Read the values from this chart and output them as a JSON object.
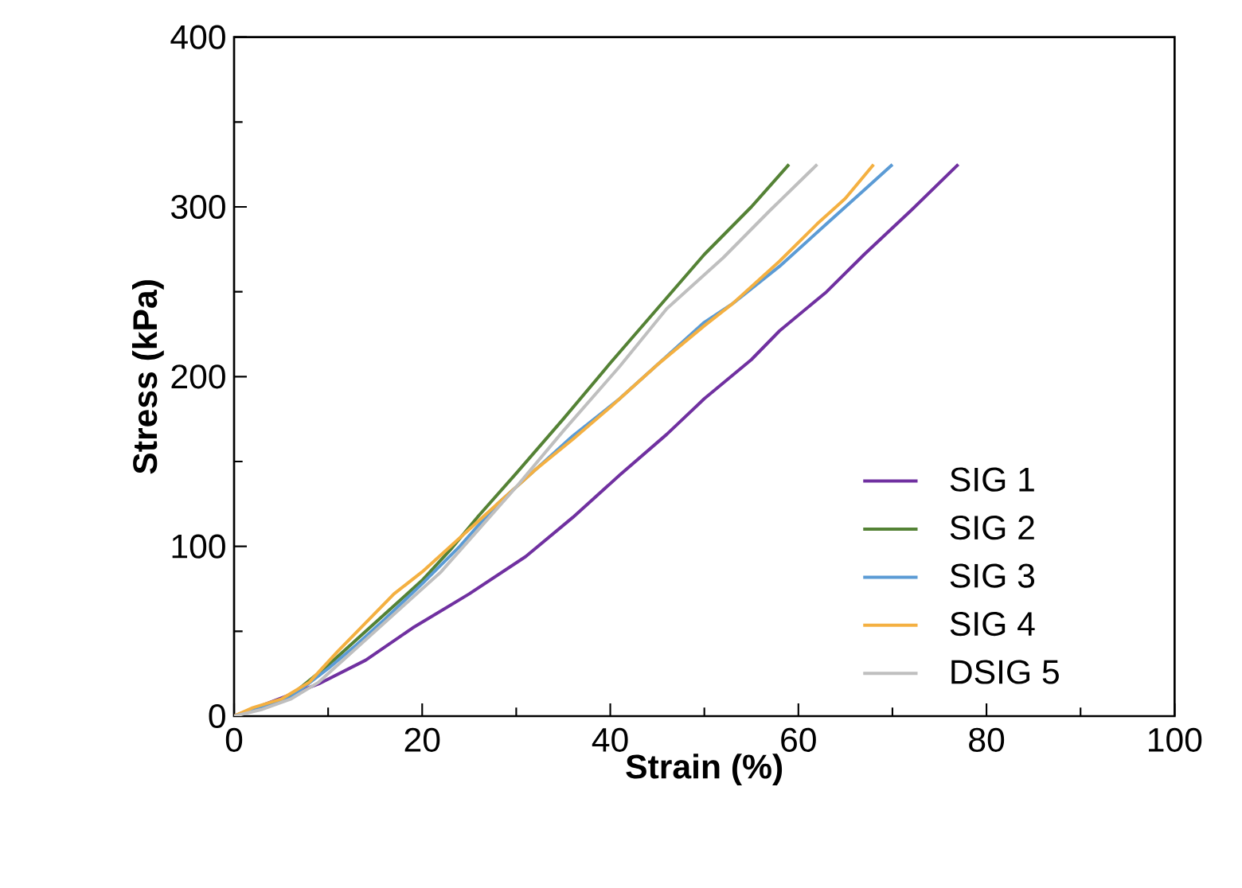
{
  "chart_data": {
    "type": "line",
    "xlabel": "Strain (%)",
    "ylabel": "Stress (kPa)",
    "xlim": [
      0,
      100
    ],
    "ylim": [
      0,
      400
    ],
    "xticks": [
      0,
      20,
      40,
      60,
      80,
      100
    ],
    "yticks": [
      0,
      100,
      200,
      300,
      400
    ],
    "legend": "bottom right",
    "series": [
      {
        "name": "SIG 1",
        "color": "#7030a0",
        "x": [
          0,
          5,
          9,
          14,
          19,
          25,
          31,
          36,
          41,
          46,
          50,
          55,
          58,
          63,
          67,
          72,
          77
        ],
        "values": [
          0,
          null,
          19,
          33,
          52,
          72,
          94,
          117,
          142,
          166,
          187,
          210,
          227,
          250,
          272,
          298,
          325
        ]
      },
      {
        "name": "SIG 2",
        "color": "#548235",
        "x": [
          0,
          3,
          6,
          10,
          13,
          16,
          20,
          23,
          26,
          30,
          35,
          40,
          45,
          50,
          55,
          59
        ],
        "values": [
          0,
          5,
          12,
          30,
          45,
          60,
          80,
          98,
          118,
          143,
          175,
          208,
          240,
          272,
          300,
          325
        ]
      },
      {
        "name": "SIG 3",
        "color": "#5b9bd5",
        "x": [
          0,
          3,
          6,
          10,
          13,
          16,
          20,
          24,
          28,
          32,
          36,
          41,
          46,
          50,
          53,
          58,
          63,
          67,
          70
        ],
        "values": [
          0,
          5,
          11,
          28,
          42,
          57,
          78,
          100,
          125,
          145,
          165,
          187,
          212,
          232,
          243,
          265,
          290,
          310,
          325
        ]
      },
      {
        "name": "SIG 4",
        "color": "#f4b041",
        "x": [
          0,
          2,
          5,
          8,
          11,
          14,
          17,
          20,
          24,
          28,
          32,
          36,
          40,
          45,
          50,
          53,
          58,
          62,
          65,
          68
        ],
        "values": [
          0,
          5,
          10,
          20,
          38,
          55,
          72,
          85,
          105,
          125,
          145,
          163,
          182,
          207,
          230,
          243,
          268,
          290,
          305,
          325
        ]
      },
      {
        "name": "DSIG 5",
        "color": "#bfbfbf",
        "x": [
          0,
          3,
          6,
          9,
          12,
          15,
          18,
          22,
          26,
          30,
          35,
          41,
          46,
          52,
          57,
          62
        ],
        "values": [
          0,
          4,
          10,
          20,
          35,
          50,
          65,
          85,
          110,
          135,
          168,
          206,
          240,
          270,
          298,
          325
        ]
      }
    ]
  }
}
